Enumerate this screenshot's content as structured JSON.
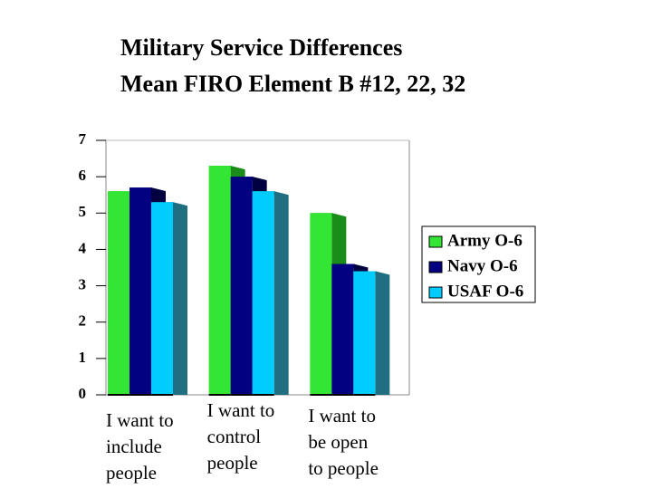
{
  "chart_data": {
    "type": "bar3d",
    "title": "Military Service Differences",
    "subtitle": "Mean FIRO Element B #12, 22, 32",
    "categories": [
      [
        "I want to",
        "include",
        "people"
      ],
      [
        "I want to",
        "control",
        "people"
      ],
      [
        "I want to",
        "be open",
        "to people"
      ]
    ],
    "series": [
      {
        "name": "Army O-6",
        "color": "#33e633",
        "side_color": "#1a8c1a",
        "values": [
          5.6,
          6.3,
          5.0
        ]
      },
      {
        "name": "Navy O-6",
        "color": "#000080",
        "side_color": "#000040",
        "values": [
          5.7,
          6.0,
          3.6
        ]
      },
      {
        "name": "USAF O-6",
        "color": "#00ccff",
        "side_color": "#1f6f80",
        "values": [
          5.3,
          5.6,
          3.4
        ]
      }
    ],
    "ylim": [
      0,
      7
    ],
    "yticks": [
      0,
      1,
      2,
      3,
      4,
      5,
      6,
      7
    ],
    "legend": "right"
  }
}
